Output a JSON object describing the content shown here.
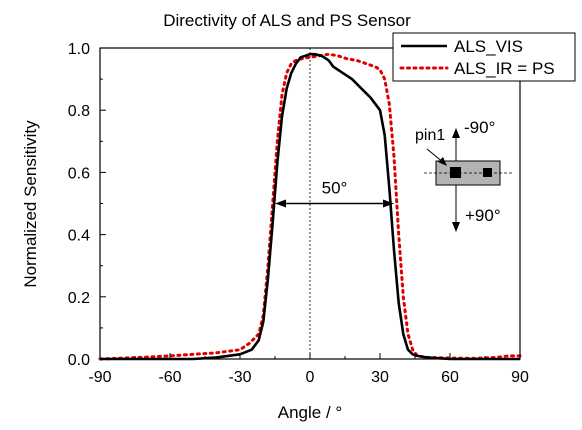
{
  "chart_data": {
    "type": "line",
    "title": "Directivity of ALS and PS Sensor",
    "xlabel": "Angle / °",
    "ylabel": "Normalized Sensitivity",
    "xlim": [
      -90,
      90
    ],
    "ylim": [
      0,
      1.0
    ],
    "xticks": [
      -90,
      -60,
      -30,
      0,
      30,
      60,
      90
    ],
    "xtick_labels": [
      "-90",
      "-60",
      "-30",
      "0",
      "30",
      "60",
      "90"
    ],
    "yticks": [
      0,
      0.2,
      0.4,
      0.6,
      0.8,
      1.0
    ],
    "ytick_labels": [
      "0.0",
      "0.2",
      "0.4",
      "0.6",
      "0.8",
      "1.0"
    ],
    "grid": false,
    "legend_position": "top-right",
    "series": [
      {
        "name": "ALS_VIS",
        "color": "#000000",
        "style": "solid",
        "x": [
          -90,
          -70,
          -50,
          -40,
          -30,
          -25,
          -22,
          -20,
          -18,
          -16,
          -14,
          -12,
          -10,
          -8,
          -6,
          -4,
          -2,
          0,
          2,
          5,
          8,
          10,
          14,
          18,
          22,
          26,
          30,
          32,
          34,
          36,
          38,
          40,
          42,
          44,
          46,
          50,
          60,
          70,
          80,
          90
        ],
        "y": [
          0.0,
          0.0,
          0.0,
          0.005,
          0.015,
          0.03,
          0.06,
          0.12,
          0.26,
          0.44,
          0.63,
          0.78,
          0.87,
          0.92,
          0.95,
          0.97,
          0.975,
          0.98,
          0.98,
          0.975,
          0.96,
          0.94,
          0.92,
          0.9,
          0.87,
          0.84,
          0.8,
          0.72,
          0.55,
          0.35,
          0.18,
          0.08,
          0.03,
          0.015,
          0.01,
          0.005,
          0.0,
          0.0,
          0.0,
          0.0
        ]
      },
      {
        "name": "ALS_IR = PS",
        "color": "#e00000",
        "style": "dotted",
        "x": [
          -90,
          -80,
          -70,
          -60,
          -50,
          -40,
          -30,
          -26,
          -22,
          -20,
          -18,
          -16,
          -14,
          -12,
          -10,
          -8,
          -6,
          -4,
          -2,
          0,
          4,
          8,
          12,
          16,
          20,
          24,
          28,
          30,
          32,
          34,
          36,
          38,
          40,
          42,
          44,
          46,
          50,
          60,
          70,
          80,
          85,
          90
        ],
        "y": [
          0.0,
          0.003,
          0.006,
          0.01,
          0.015,
          0.02,
          0.03,
          0.05,
          0.08,
          0.14,
          0.3,
          0.5,
          0.7,
          0.85,
          0.92,
          0.95,
          0.96,
          0.965,
          0.968,
          0.97,
          0.975,
          0.98,
          0.975,
          0.965,
          0.96,
          0.95,
          0.94,
          0.93,
          0.9,
          0.82,
          0.65,
          0.4,
          0.2,
          0.08,
          0.03,
          0.01,
          0.005,
          0.003,
          0.002,
          0.005,
          0.01,
          0.01
        ]
      }
    ],
    "annotations": {
      "width_label": "50°",
      "width_x": [
        -15,
        36
      ],
      "width_y": 0.5,
      "pin_label": "pin1",
      "angle_minus": "-90°",
      "angle_plus": "+90°"
    }
  }
}
